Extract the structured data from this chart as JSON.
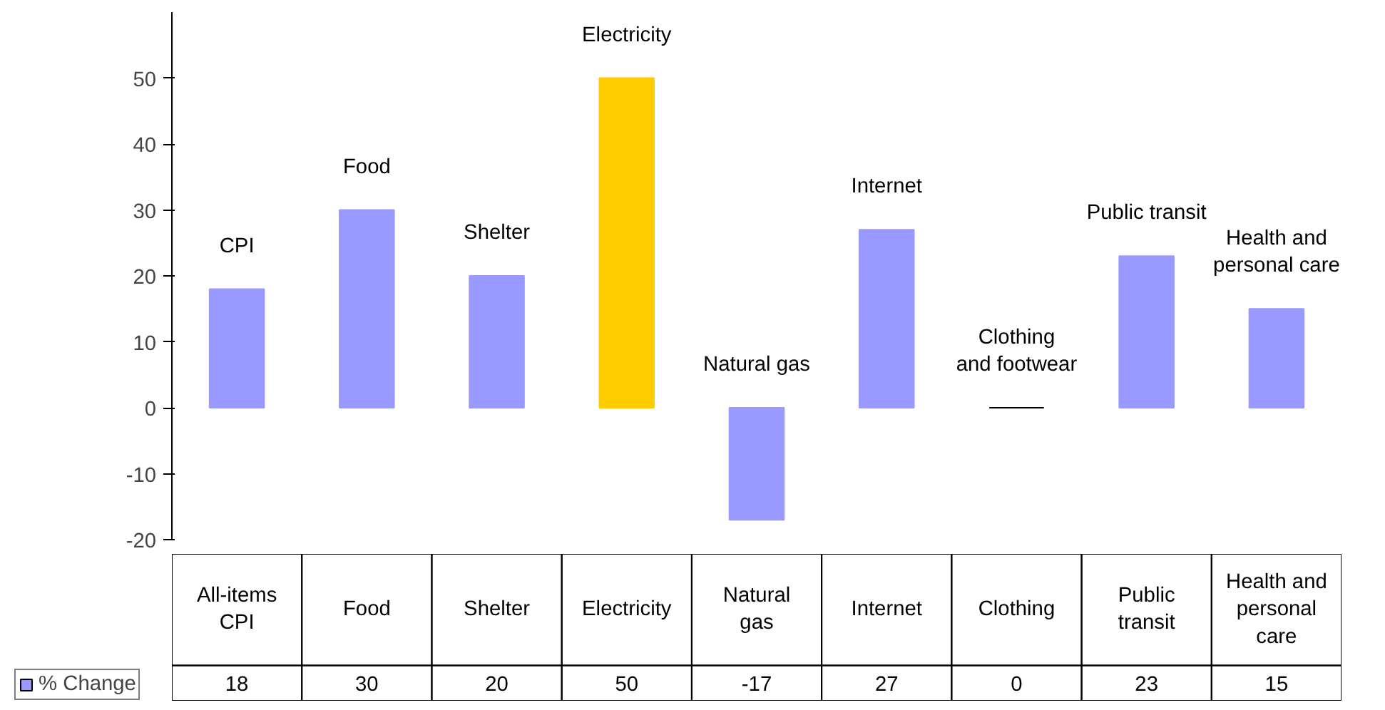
{
  "chart_data": {
    "type": "bar",
    "categories": [
      "All-items CPI",
      "Food",
      "Shelter",
      "Electricity",
      "Natural gas",
      "Internet",
      "Clothing",
      "Public transit",
      "Health and personal care"
    ],
    "series": [
      {
        "name": "% Change",
        "color": "#9999ff",
        "colors": [
          "#9999ff",
          "#9999ff",
          "#9999ff",
          "#ffcc00",
          "#9999ff",
          "#9999ff",
          "#000000",
          "#9999ff",
          "#9999ff"
        ],
        "values": [
          18,
          30,
          20,
          50,
          -17,
          27,
          0,
          23,
          15
        ]
      }
    ],
    "ylim": [
      -20,
      60
    ],
    "yticks": [
      -20,
      -10,
      0,
      10,
      20,
      30,
      40,
      50
    ],
    "grid": false,
    "legend": "bottom left",
    "data_labels": true,
    "annotations": [
      "CPI",
      "Food",
      "Shelter",
      "Electricity",
      "Natural gas",
      "Internet",
      "Clothing\nand footwear",
      "Public transit",
      "Health and\npersonal care"
    ]
  }
}
